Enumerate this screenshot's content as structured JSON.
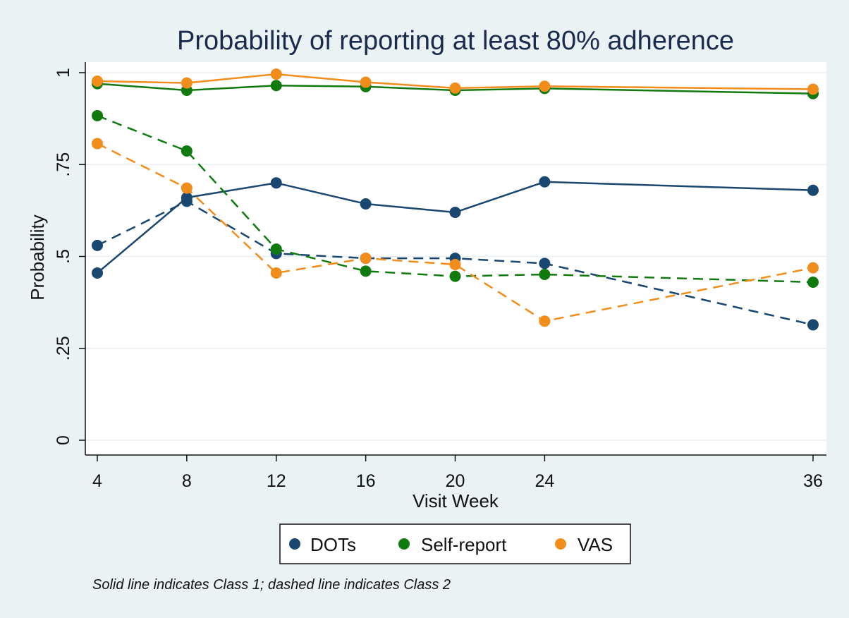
{
  "chart_data": {
    "type": "line",
    "title": "Probability of reporting at least 80% adherence",
    "xlabel": "Visit Week",
    "ylabel": "Probability",
    "x": [
      4,
      8,
      12,
      16,
      20,
      24,
      36
    ],
    "x_ticks": [
      "4",
      "8",
      "12",
      "16",
      "20",
      "24",
      "36"
    ],
    "xlim": [
      4,
      36
    ],
    "y_ticks": [
      {
        "value": 0,
        "label": "0"
      },
      {
        "value": 0.25,
        "label": ".25"
      },
      {
        "value": 0.5,
        "label": ".5"
      },
      {
        "value": 0.75,
        "label": ".75"
      },
      {
        "value": 1,
        "label": "1"
      }
    ],
    "ylim": [
      0,
      1
    ],
    "grid": true,
    "legend_position": "bottom",
    "legend": [
      {
        "label": "DOTs",
        "color": "#1a476f"
      },
      {
        "label": "Self-report",
        "color": "#117a0f"
      },
      {
        "label": "VAS",
        "color": "#f28c1b"
      }
    ],
    "series": [
      {
        "measure": "DOTs",
        "class": "Class 1",
        "style": "solid",
        "color": "#1a476f",
        "values": [
          0.455,
          0.66,
          0.7,
          0.643,
          0.62,
          0.703,
          0.68
        ]
      },
      {
        "measure": "DOTs",
        "class": "Class 2",
        "style": "dashed",
        "color": "#1a476f",
        "values": [
          0.53,
          0.65,
          0.508,
          0.495,
          0.495,
          0.481,
          0.314
        ]
      },
      {
        "measure": "Self-report",
        "class": "Class 1",
        "style": "solid",
        "color": "#117a0f",
        "values": [
          0.97,
          0.952,
          0.965,
          0.962,
          0.952,
          0.957,
          0.943
        ]
      },
      {
        "measure": "Self-report",
        "class": "Class 2",
        "style": "dashed",
        "color": "#117a0f",
        "values": [
          0.883,
          0.787,
          0.52,
          0.46,
          0.446,
          0.451,
          0.43
        ]
      },
      {
        "measure": "VAS",
        "class": "Class 1",
        "style": "solid",
        "color": "#f28c1b",
        "values": [
          0.977,
          0.972,
          0.996,
          0.974,
          0.958,
          0.963,
          0.955
        ]
      },
      {
        "measure": "VAS",
        "class": "Class 2",
        "style": "dashed",
        "color": "#f28c1b",
        "values": [
          0.807,
          0.686,
          0.455,
          0.495,
          0.478,
          0.324,
          0.469
        ]
      }
    ],
    "note": "Solid line indicates Class 1; dashed line indicates Class 2",
    "colors": {
      "background": "#eaf2f3",
      "plot_area": "#ffffff",
      "grid": "#e6eef2"
    }
  }
}
